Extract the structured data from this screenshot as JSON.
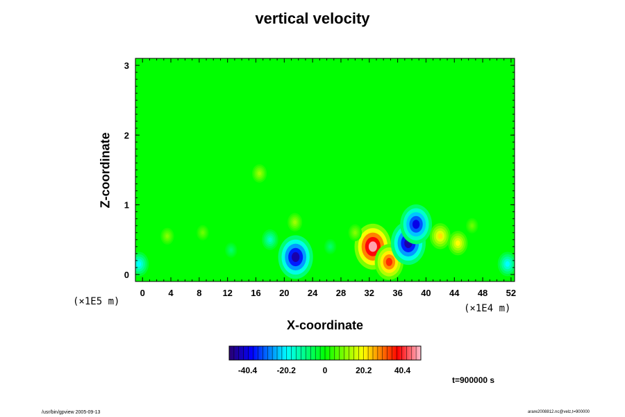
{
  "chart_data": {
    "type": "heatmap",
    "title": "vertical velocity",
    "xlabel": "X-coordinate",
    "ylabel": "Z-coordinate",
    "x_scale_label": "(×1E4 m)",
    "y_scale_label": "(×1E5 m)",
    "xlim": [
      -1,
      52.5
    ],
    "ylim": [
      -0.1,
      3.1
    ],
    "xticks": [
      "0",
      "4",
      "8",
      "12",
      "16",
      "20",
      "24",
      "28",
      "32",
      "36",
      "40",
      "44",
      "48",
      "52"
    ],
    "xtick_values": [
      0,
      4,
      8,
      12,
      16,
      20,
      24,
      28,
      32,
      36,
      40,
      44,
      48,
      52
    ],
    "yticks": [
      "0",
      "1",
      "2",
      "3"
    ],
    "ytick_values": [
      0,
      1,
      2,
      3
    ],
    "colorbar": {
      "range": [
        -50,
        50
      ],
      "tick_labels": [
        "-40.4",
        "-20.2",
        "0",
        "20.2",
        "40.4"
      ],
      "tick_values": [
        -40.4,
        -20.2,
        0,
        20.2,
        40.4
      ]
    },
    "features": [
      {
        "x": 32.5,
        "z": 0.4,
        "value": 48
      },
      {
        "x": 34.8,
        "z": 0.18,
        "value": 35
      },
      {
        "x": 37.5,
        "z": 0.45,
        "value": -45
      },
      {
        "x": 38.6,
        "z": 0.72,
        "value": -40
      },
      {
        "x": 21.6,
        "z": 0.25,
        "value": -45
      },
      {
        "x": 18.0,
        "z": 0.5,
        "value": -15
      },
      {
        "x": 42.0,
        "z": 0.55,
        "value": 22
      },
      {
        "x": 44.5,
        "z": 0.45,
        "value": 20
      },
      {
        "x": 16.5,
        "z": 1.45,
        "value": 12
      },
      {
        "x": 21.5,
        "z": 0.75,
        "value": 12
      },
      {
        "x": 3.5,
        "z": 0.55,
        "value": 10
      },
      {
        "x": 8.5,
        "z": 0.6,
        "value": 8
      },
      {
        "x": 30.0,
        "z": 0.6,
        "value": 10
      },
      {
        "x": 26.5,
        "z": 0.4,
        "value": -8
      },
      {
        "x": -0.5,
        "z": 0.15,
        "value": -20
      },
      {
        "x": 51.5,
        "z": 0.15,
        "value": -20
      },
      {
        "x": 12.5,
        "z": 0.35,
        "value": -8
      },
      {
        "x": 46.5,
        "z": 0.7,
        "value": 8
      }
    ],
    "grid": false
  },
  "annotations": {
    "time_label": "t=900000 s",
    "footer_left": "/usr/bin/gpview 2005-09-13",
    "footer_right": "arare2008812.nc@velz,t=900000"
  }
}
